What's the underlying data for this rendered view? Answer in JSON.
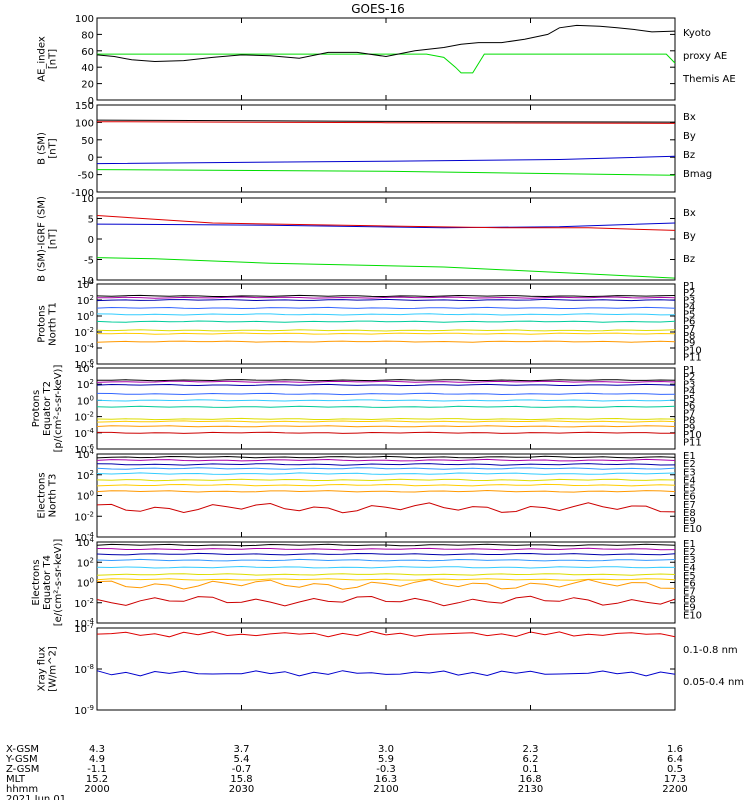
{
  "title": "GOES-16",
  "colors": {
    "black": "#000000",
    "blue": "#0000cc",
    "green": "#00dd00",
    "red": "#dd0000",
    "p_blue": "#0000aa",
    "p_lblue": "#3399ff",
    "p_cyan": "#00cccc",
    "p_teal": "#33cc99",
    "p_yellow": "#dddd00",
    "p_orange": "#ff9900"
  },
  "panels": [
    {
      "id": "ae",
      "ylabel": [
        "AE_index",
        "[nT]"
      ],
      "ticks": [
        "0",
        "20",
        "40",
        "60",
        "80",
        "100"
      ],
      "legend": [
        {
          "text": "Kyoto",
          "color": "#00dd00"
        },
        {
          "text": "proxy AE",
          "color": "#00dd00"
        },
        {
          "text": "Themis AE",
          "color": "#000000"
        }
      ]
    },
    {
      "id": "bsm",
      "ylabel": [
        "B (SM)",
        "[nT]"
      ],
      "ticks": [
        "-100",
        "-50",
        "0",
        "50",
        "100",
        "150"
      ],
      "legend": [
        {
          "text": "Bx",
          "color": "#0000cc"
        },
        {
          "text": "By",
          "color": "#00dd00"
        },
        {
          "text": "Bz",
          "color": "#dd0000"
        },
        {
          "text": "Bmag",
          "color": "#000000"
        }
      ]
    },
    {
      "id": "bigrf",
      "ylabel": [
        "B (SM)-IGRF (SM)",
        "[nT]"
      ],
      "ticks": [
        "-10",
        "-5",
        "0",
        "5",
        "10"
      ],
      "legend": [
        {
          "text": "Bx",
          "color": "#0000cc"
        },
        {
          "text": "By",
          "color": "#00dd00"
        },
        {
          "text": "Bz",
          "color": "#dd0000"
        }
      ]
    },
    {
      "id": "pnorth",
      "ylabel": [
        "Protons",
        "North T1"
      ],
      "ticks": [
        "10^-6",
        "10^-4",
        "10^-2",
        "10^0",
        "10^2",
        "10^4"
      ],
      "legend": [
        {
          "text": "P1",
          "color": "#000000"
        },
        {
          "text": "P2",
          "color": "#aa00aa"
        },
        {
          "text": "P3",
          "color": "#0000aa"
        },
        {
          "text": "P4",
          "color": "#3366ff"
        },
        {
          "text": "P5",
          "color": "#33ccff"
        },
        {
          "text": "P6",
          "color": "#00cc99"
        },
        {
          "text": "P7",
          "color": "#dddd00"
        },
        {
          "text": "P8",
          "color": "#ffcc00"
        },
        {
          "text": "P9",
          "color": "#ff9900"
        },
        {
          "text": "P10",
          "color": "#cc0000"
        },
        {
          "text": "P11",
          "color": "#cc0000"
        }
      ]
    },
    {
      "id": "peq",
      "ylabel": [
        "Protons",
        "Equator T2",
        "[p/(cm²-s-sr-keV)]"
      ],
      "ticks": [
        "10^-6",
        "10^-4",
        "10^-2",
        "10^0",
        "10^2",
        "10^4"
      ],
      "legend": [
        {
          "text": "P1",
          "color": "#000000"
        },
        {
          "text": "P2",
          "color": "#aa00aa"
        },
        {
          "text": "P3",
          "color": "#0000aa"
        },
        {
          "text": "P4",
          "color": "#3366ff"
        },
        {
          "text": "P5",
          "color": "#33ccff"
        },
        {
          "text": "P6",
          "color": "#00cc99"
        },
        {
          "text": "P7",
          "color": "#dddd00"
        },
        {
          "text": "P8",
          "color": "#ffcc00"
        },
        {
          "text": "P9",
          "color": "#ff9900"
        },
        {
          "text": "P10",
          "color": "#cc0000"
        },
        {
          "text": "P11",
          "color": "#cc0000"
        }
      ]
    },
    {
      "id": "enorth",
      "ylabel": [
        "Electrons",
        "North T3"
      ],
      "ticks": [
        "10^-4",
        "10^-2",
        "10^0",
        "10^2",
        "10^4"
      ],
      "legend": [
        {
          "text": "E1",
          "color": "#000000"
        },
        {
          "text": "E2",
          "color": "#aa00aa"
        },
        {
          "text": "E3",
          "color": "#0000aa"
        },
        {
          "text": "E4",
          "color": "#3399ff"
        },
        {
          "text": "E5",
          "color": "#33ccff"
        },
        {
          "text": "E6",
          "color": "#dddd00"
        },
        {
          "text": "E7",
          "color": "#ffcc00"
        },
        {
          "text": "E8",
          "color": "#ff9900"
        },
        {
          "text": "E9",
          "color": "#cc0000"
        },
        {
          "text": "E10",
          "color": "#cc0000"
        }
      ]
    },
    {
      "id": "eeq",
      "ylabel": [
        "Electrons",
        "Equator T4",
        "[e/(cm²-s-sr-keV)]"
      ],
      "ticks": [
        "10^-4",
        "10^-2",
        "10^0",
        "10^2",
        "10^4"
      ],
      "legend": [
        {
          "text": "E1",
          "color": "#000000"
        },
        {
          "text": "E2",
          "color": "#aa00aa"
        },
        {
          "text": "E3",
          "color": "#0000aa"
        },
        {
          "text": "E4",
          "color": "#3399ff"
        },
        {
          "text": "E5",
          "color": "#33ccff"
        },
        {
          "text": "E6",
          "color": "#dddd00"
        },
        {
          "text": "E7",
          "color": "#ffcc00"
        },
        {
          "text": "E8",
          "color": "#ff9900"
        },
        {
          "text": "E9",
          "color": "#cc0000"
        },
        {
          "text": "E10",
          "color": "#cc0000"
        }
      ]
    },
    {
      "id": "xray",
      "ylabel": [
        "Xray flux",
        "[W/m^2]"
      ],
      "ticks": [
        "10^-9",
        "10^-8",
        "10^-7"
      ],
      "legend": [
        {
          "text": "0.1-0.8 nm",
          "color": "#dd0000"
        },
        {
          "text": "0.05-0.4 nm",
          "color": "#0000cc"
        }
      ]
    }
  ],
  "xaxis": {
    "row_labels": [
      "X-GSM",
      "Y-GSM",
      "Z-GSM",
      "MLT",
      "hhmm",
      "2021 Jun 01"
    ],
    "columns": [
      {
        "X-GSM": "4.3",
        "Y-GSM": "4.9",
        "Z-GSM": "-1.1",
        "MLT": "15.2",
        "hhmm": "2000"
      },
      {
        "X-GSM": "3.7",
        "Y-GSM": "5.4",
        "Z-GSM": "-0.7",
        "MLT": "15.8",
        "hhmm": "2030"
      },
      {
        "X-GSM": "3.0",
        "Y-GSM": "5.9",
        "Z-GSM": "-0.3",
        "MLT": "16.3",
        "hhmm": "2100"
      },
      {
        "X-GSM": "2.3",
        "Y-GSM": "6.2",
        "Z-GSM": "0.1",
        "MLT": "16.8",
        "hhmm": "2130"
      },
      {
        "X-GSM": "1.6",
        "Y-GSM": "6.4",
        "Z-GSM": "0.5",
        "MLT": "17.3",
        "hhmm": "2200"
      }
    ]
  },
  "chart_data": [
    {
      "type": "line",
      "title": "GOES-16",
      "ylabel": "AE_index [nT]",
      "ylim": [
        0,
        100
      ],
      "x_range": [
        "2000",
        "2200"
      ],
      "series": [
        {
          "name": "Kyoto proxy AE",
          "color": "#00dd00",
          "t": [
            0,
            0.57,
            0.6,
            0.62,
            0.63,
            0.65,
            0.67,
            0.985,
            1.0
          ],
          "v": [
            56,
            56,
            52,
            40,
            33,
            33,
            56,
            56,
            45
          ]
        },
        {
          "name": "Themis AE",
          "color": "#000000",
          "t": [
            0,
            0.03,
            0.06,
            0.1,
            0.15,
            0.2,
            0.25,
            0.3,
            0.35,
            0.4,
            0.45,
            0.5,
            0.55,
            0.6,
            0.63,
            0.66,
            0.7,
            0.74,
            0.78,
            0.8,
            0.83,
            0.87,
            0.9,
            0.93,
            0.96,
            1.0
          ],
          "v": [
            55,
            53,
            49,
            47,
            48,
            52,
            55,
            54,
            51,
            58,
            58,
            53,
            60,
            64,
            68,
            70,
            70,
            74,
            80,
            88,
            91,
            90,
            88,
            86,
            83,
            84
          ]
        }
      ]
    },
    {
      "type": "line",
      "ylabel": "B (SM) [nT]",
      "ylim": [
        -110,
        150
      ],
      "series": [
        {
          "name": "Bx",
          "color": "#0000cc",
          "t": [
            0,
            0.5,
            0.8,
            1.0
          ],
          "v": [
            -25,
            -18,
            -13,
            -3
          ]
        },
        {
          "name": "By",
          "color": "#00dd00",
          "t": [
            0,
            0.5,
            1.0
          ],
          "v": [
            -43,
            -48,
            -60
          ]
        },
        {
          "name": "Bz",
          "color": "#dd0000",
          "t": [
            0,
            0.5,
            1.0
          ],
          "v": [
            100,
            97,
            95
          ]
        },
        {
          "name": "Bmag",
          "color": "#000000",
          "t": [
            0,
            0.5,
            1.0
          ],
          "v": [
            105,
            101,
            99
          ]
        }
      ]
    },
    {
      "type": "line",
      "ylabel": "B (SM)-IGRF (SM) [nT]",
      "ylim": [
        -11,
        11
      ],
      "series": [
        {
          "name": "Bx",
          "color": "#0000cc",
          "t": [
            0,
            0.3,
            0.6,
            0.8,
            1.0
          ],
          "v": [
            4,
            3.7,
            3,
            3.3,
            4.3
          ]
        },
        {
          "name": "By",
          "color": "#00dd00",
          "t": [
            0,
            0.1,
            0.3,
            0.6,
            0.8,
            1.0
          ],
          "v": [
            -5,
            -5.3,
            -6.5,
            -7.5,
            -9,
            -10.5
          ]
        },
        {
          "name": "Bz",
          "color": "#dd0000",
          "t": [
            0,
            0.2,
            0.5,
            0.7,
            0.85,
            1.0
          ],
          "v": [
            6.3,
            4.3,
            3.5,
            3,
            3,
            2.3
          ]
        }
      ]
    },
    {
      "type": "line",
      "ylabel": "Protons North T1 (log10)",
      "ylim": [
        -6,
        4
      ],
      "series": [
        {
          "name": "P1",
          "color": "#000000",
          "log": 2.5
        },
        {
          "name": "P2",
          "color": "#aa00aa",
          "log": 2.3
        },
        {
          "name": "P3",
          "color": "#0000aa",
          "log": 2.0
        },
        {
          "name": "P4",
          "color": "#3366ff",
          "log": 1.0
        },
        {
          "name": "P5",
          "color": "#33ccff",
          "log": 0.2
        },
        {
          "name": "P6",
          "color": "#00cc99",
          "log": -0.7
        },
        {
          "name": "P7",
          "color": "#dddd00",
          "log": -1.8
        },
        {
          "name": "P8",
          "color": "#ffcc00",
          "log": -2.2
        },
        {
          "name": "P9",
          "color": "#ff9900",
          "log": -3.2
        }
      ]
    },
    {
      "type": "line",
      "ylabel": "Protons Equator T2 (log10)",
      "ylim": [
        -6,
        4
      ],
      "series": [
        {
          "name": "P1",
          "color": "#000000",
          "log": 2.5
        },
        {
          "name": "P2",
          "color": "#aa00aa",
          "log": 2.3
        },
        {
          "name": "P3",
          "color": "#0000aa",
          "log": 1.9
        },
        {
          "name": "P4",
          "color": "#3366ff",
          "log": 0.8
        },
        {
          "name": "P5",
          "color": "#33ccff",
          "log": 0.0
        },
        {
          "name": "P6",
          "color": "#00cc99",
          "log": -0.8
        },
        {
          "name": "P7",
          "color": "#dddd00",
          "log": -2.3
        },
        {
          "name": "P8",
          "color": "#ffcc00",
          "log": -2.6
        },
        {
          "name": "P9",
          "color": "#ff9900",
          "log": -3.2
        },
        {
          "name": "P10",
          "color": "#cc0000",
          "log": -4.0
        }
      ]
    },
    {
      "type": "line",
      "ylabel": "Electrons North T3 (log10)",
      "ylim": [
        -4,
        4
      ],
      "series": [
        {
          "name": "E1",
          "color": "#000000",
          "log": 3.7
        },
        {
          "name": "E2",
          "color": "#aa00aa",
          "log": 3.4
        },
        {
          "name": "E3",
          "color": "#0000aa",
          "log": 3.0
        },
        {
          "name": "E4",
          "color": "#3399ff",
          "log": 2.6
        },
        {
          "name": "E5",
          "color": "#33ccff",
          "log": 2.1
        },
        {
          "name": "E6",
          "color": "#dddd00",
          "log": 1.5
        },
        {
          "name": "E7",
          "color": "#ffcc00",
          "log": 1.0
        },
        {
          "name": "E8",
          "color": "#ff9900",
          "log": 0.4
        },
        {
          "name": "E9",
          "color": "#cc0000",
          "log": -1.2
        }
      ]
    },
    {
      "type": "line",
      "ylabel": "Electrons Equator T4 (log10)",
      "ylim": [
        -4,
        4
      ],
      "series": [
        {
          "name": "E1",
          "color": "#000000",
          "log": 3.7
        },
        {
          "name": "E2",
          "color": "#aa00aa",
          "log": 3.3
        },
        {
          "name": "E3",
          "color": "#0000aa",
          "log": 2.8
        },
        {
          "name": "E4",
          "color": "#3399ff",
          "log": 2.2
        },
        {
          "name": "E5",
          "color": "#33ccff",
          "log": 1.5
        },
        {
          "name": "E6",
          "color": "#dddd00",
          "log": 0.8
        },
        {
          "name": "E7",
          "color": "#ffcc00",
          "log": 0.3
        },
        {
          "name": "E8",
          "color": "#ff9900",
          "log": -0.2
        },
        {
          "name": "E9",
          "color": "#cc0000",
          "log": -1.8
        }
      ]
    },
    {
      "type": "line",
      "ylabel": "Xray flux [W/m^2] (log10)",
      "ylim": [
        -9,
        -7
      ],
      "series": [
        {
          "name": "0.1-0.8 nm",
          "color": "#dd0000",
          "log": -7.15
        },
        {
          "name": "0.05-0.4 nm",
          "color": "#0000cc",
          "log": -8.1
        }
      ]
    }
  ]
}
